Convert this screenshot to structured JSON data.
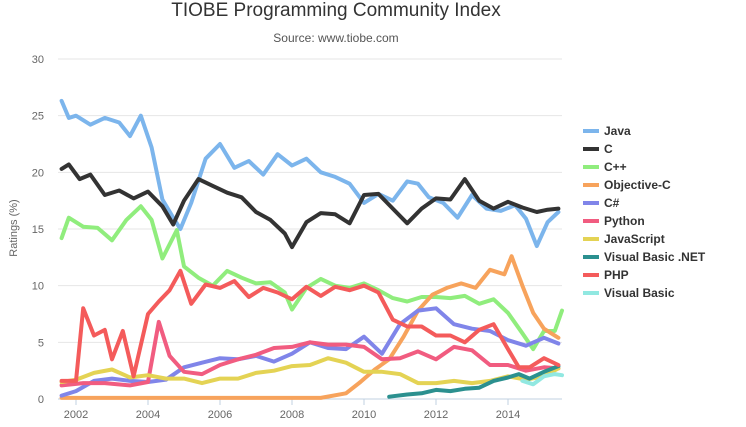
{
  "chart_data": {
    "type": "line",
    "title": "TIOBE Programming Community Index",
    "subtitle": "Source: www.tiobe.com",
    "xlabel": "",
    "ylabel": "Ratings (%)",
    "xlim": [
      2001.5,
      2015.5
    ],
    "ylim": [
      0,
      30
    ],
    "x_ticks": [
      2002,
      2004,
      2006,
      2008,
      2010,
      2012,
      2014
    ],
    "y_ticks": [
      0,
      5,
      10,
      15,
      20,
      25,
      30
    ],
    "grid": "horizontal",
    "legend_position": "right",
    "series": [
      {
        "name": "Java",
        "color": "#7cb5ec",
        "points": [
          [
            2001.6,
            26.3
          ],
          [
            2001.8,
            24.8
          ],
          [
            2002.0,
            25.0
          ],
          [
            2002.4,
            24.2
          ],
          [
            2002.8,
            24.8
          ],
          [
            2003.2,
            24.4
          ],
          [
            2003.5,
            23.2
          ],
          [
            2003.8,
            25.0
          ],
          [
            2004.1,
            22.2
          ],
          [
            2004.4,
            17.6
          ],
          [
            2004.7,
            16.0
          ],
          [
            2004.9,
            15.0
          ],
          [
            2005.2,
            17.3
          ],
          [
            2005.6,
            21.2
          ],
          [
            2006.0,
            22.5
          ],
          [
            2006.4,
            20.4
          ],
          [
            2006.8,
            21.0
          ],
          [
            2007.2,
            19.8
          ],
          [
            2007.6,
            21.6
          ],
          [
            2008.0,
            20.6
          ],
          [
            2008.4,
            21.2
          ],
          [
            2008.8,
            20.0
          ],
          [
            2009.2,
            19.6
          ],
          [
            2009.6,
            19.0
          ],
          [
            2010.0,
            17.3
          ],
          [
            2010.4,
            18.1
          ],
          [
            2010.8,
            17.5
          ],
          [
            2011.2,
            19.2
          ],
          [
            2011.5,
            19.0
          ],
          [
            2011.8,
            17.8
          ],
          [
            2012.2,
            17.3
          ],
          [
            2012.6,
            16.0
          ],
          [
            2013.0,
            18.0
          ],
          [
            2013.4,
            16.8
          ],
          [
            2013.8,
            16.6
          ],
          [
            2014.2,
            17.1
          ],
          [
            2014.5,
            15.9
          ],
          [
            2014.8,
            13.5
          ],
          [
            2015.1,
            15.6
          ],
          [
            2015.4,
            16.5
          ]
        ]
      },
      {
        "name": "C",
        "color": "#333333",
        "points": [
          [
            2001.6,
            20.3
          ],
          [
            2001.8,
            20.7
          ],
          [
            2002.1,
            19.4
          ],
          [
            2002.4,
            19.8
          ],
          [
            2002.8,
            18.0
          ],
          [
            2003.2,
            18.4
          ],
          [
            2003.6,
            17.7
          ],
          [
            2004.0,
            18.3
          ],
          [
            2004.4,
            17.0
          ],
          [
            2004.7,
            15.4
          ],
          [
            2005.0,
            17.5
          ],
          [
            2005.4,
            19.4
          ],
          [
            2005.8,
            18.8
          ],
          [
            2006.2,
            18.2
          ],
          [
            2006.6,
            17.8
          ],
          [
            2007.0,
            16.5
          ],
          [
            2007.4,
            15.8
          ],
          [
            2007.8,
            14.6
          ],
          [
            2008.0,
            13.4
          ],
          [
            2008.4,
            15.6
          ],
          [
            2008.8,
            16.4
          ],
          [
            2009.2,
            16.3
          ],
          [
            2009.6,
            15.5
          ],
          [
            2010.0,
            18.0
          ],
          [
            2010.4,
            18.1
          ],
          [
            2010.8,
            16.8
          ],
          [
            2011.2,
            15.5
          ],
          [
            2011.6,
            16.8
          ],
          [
            2012.0,
            17.7
          ],
          [
            2012.4,
            17.6
          ],
          [
            2012.8,
            19.4
          ],
          [
            2013.2,
            17.5
          ],
          [
            2013.6,
            16.8
          ],
          [
            2014.0,
            17.4
          ],
          [
            2014.4,
            16.9
          ],
          [
            2014.8,
            16.5
          ],
          [
            2015.1,
            16.7
          ],
          [
            2015.4,
            16.8
          ]
        ]
      },
      {
        "name": "C++",
        "color": "#90ed7d",
        "points": [
          [
            2001.6,
            14.2
          ],
          [
            2001.8,
            16.0
          ],
          [
            2002.2,
            15.2
          ],
          [
            2002.6,
            15.1
          ],
          [
            2003.0,
            14.0
          ],
          [
            2003.4,
            15.8
          ],
          [
            2003.8,
            17.0
          ],
          [
            2004.1,
            15.8
          ],
          [
            2004.4,
            12.4
          ],
          [
            2004.8,
            14.9
          ],
          [
            2005.0,
            11.7
          ],
          [
            2005.4,
            10.7
          ],
          [
            2005.8,
            10.0
          ],
          [
            2006.2,
            11.3
          ],
          [
            2006.6,
            10.7
          ],
          [
            2007.0,
            10.2
          ],
          [
            2007.4,
            10.3
          ],
          [
            2007.8,
            9.4
          ],
          [
            2008.0,
            7.9
          ],
          [
            2008.4,
            9.8
          ],
          [
            2008.8,
            10.6
          ],
          [
            2009.2,
            10.0
          ],
          [
            2009.6,
            9.8
          ],
          [
            2010.0,
            10.2
          ],
          [
            2010.4,
            9.6
          ],
          [
            2010.8,
            8.9
          ],
          [
            2011.2,
            8.6
          ],
          [
            2011.6,
            9.0
          ],
          [
            2012.0,
            9.0
          ],
          [
            2012.4,
            8.9
          ],
          [
            2012.8,
            9.1
          ],
          [
            2013.2,
            8.4
          ],
          [
            2013.6,
            8.8
          ],
          [
            2014.0,
            7.6
          ],
          [
            2014.4,
            5.8
          ],
          [
            2014.7,
            4.4
          ],
          [
            2015.0,
            6.0
          ],
          [
            2015.3,
            6.0
          ],
          [
            2015.5,
            7.8
          ]
        ]
      },
      {
        "name": "Objective-C",
        "color": "#f7a35c",
        "points": [
          [
            2001.6,
            0.1
          ],
          [
            2003.0,
            0.1
          ],
          [
            2005.0,
            0.1
          ],
          [
            2007.0,
            0.1
          ],
          [
            2008.8,
            0.1
          ],
          [
            2009.5,
            0.5
          ],
          [
            2009.9,
            1.5
          ],
          [
            2010.3,
            2.6
          ],
          [
            2010.7,
            3.5
          ],
          [
            2011.1,
            5.5
          ],
          [
            2011.5,
            7.8
          ],
          [
            2011.9,
            9.2
          ],
          [
            2012.3,
            9.8
          ],
          [
            2012.7,
            10.2
          ],
          [
            2013.1,
            9.8
          ],
          [
            2013.5,
            11.4
          ],
          [
            2013.9,
            11.0
          ],
          [
            2014.1,
            12.6
          ],
          [
            2014.4,
            10.0
          ],
          [
            2014.7,
            7.6
          ],
          [
            2015.0,
            6.2
          ],
          [
            2015.2,
            5.8
          ],
          [
            2015.4,
            5.4
          ]
        ]
      },
      {
        "name": "C#",
        "color": "#8085e9",
        "points": [
          [
            2001.6,
            0.3
          ],
          [
            2002.0,
            0.7
          ],
          [
            2002.5,
            1.6
          ],
          [
            2003.0,
            1.8
          ],
          [
            2003.5,
            1.6
          ],
          [
            2004.0,
            1.5
          ],
          [
            2004.5,
            1.7
          ],
          [
            2005.0,
            2.8
          ],
          [
            2005.5,
            3.2
          ],
          [
            2006.0,
            3.6
          ],
          [
            2006.5,
            3.5
          ],
          [
            2007.0,
            3.8
          ],
          [
            2007.5,
            3.3
          ],
          [
            2008.0,
            4.0
          ],
          [
            2008.5,
            5.0
          ],
          [
            2009.0,
            4.5
          ],
          [
            2009.5,
            4.4
          ],
          [
            2010.0,
            5.5
          ],
          [
            2010.5,
            4.0
          ],
          [
            2011.0,
            6.6
          ],
          [
            2011.5,
            7.8
          ],
          [
            2012.0,
            8.0
          ],
          [
            2012.5,
            6.6
          ],
          [
            2013.0,
            6.2
          ],
          [
            2013.5,
            6.0
          ],
          [
            2014.0,
            5.2
          ],
          [
            2014.5,
            4.7
          ],
          [
            2015.0,
            5.4
          ],
          [
            2015.4,
            4.9
          ]
        ]
      },
      {
        "name": "Python",
        "color": "#f15c80",
        "points": [
          [
            2001.6,
            1.2
          ],
          [
            2002.2,
            1.4
          ],
          [
            2002.8,
            1.4
          ],
          [
            2003.5,
            1.2
          ],
          [
            2004.0,
            1.5
          ],
          [
            2004.3,
            6.8
          ],
          [
            2004.6,
            3.8
          ],
          [
            2005.0,
            2.4
          ],
          [
            2005.5,
            2.2
          ],
          [
            2006.0,
            3.0
          ],
          [
            2006.5,
            3.5
          ],
          [
            2007.0,
            3.9
          ],
          [
            2007.5,
            4.5
          ],
          [
            2008.0,
            4.6
          ],
          [
            2008.5,
            5.0
          ],
          [
            2009.0,
            4.8
          ],
          [
            2009.5,
            4.8
          ],
          [
            2010.0,
            4.6
          ],
          [
            2010.5,
            3.5
          ],
          [
            2011.0,
            3.6
          ],
          [
            2011.5,
            4.2
          ],
          [
            2012.0,
            3.5
          ],
          [
            2012.5,
            4.6
          ],
          [
            2013.0,
            4.3
          ],
          [
            2013.5,
            3.0
          ],
          [
            2014.0,
            3.0
          ],
          [
            2014.5,
            2.5
          ],
          [
            2015.0,
            2.8
          ],
          [
            2015.4,
            2.7
          ]
        ]
      },
      {
        "name": "JavaScript",
        "color": "#e4d354",
        "points": [
          [
            2001.6,
            1.5
          ],
          [
            2002.0,
            1.7
          ],
          [
            2002.5,
            2.3
          ],
          [
            2003.0,
            2.6
          ],
          [
            2003.5,
            1.9
          ],
          [
            2004.0,
            2.1
          ],
          [
            2004.5,
            1.8
          ],
          [
            2005.0,
            1.8
          ],
          [
            2005.5,
            1.4
          ],
          [
            2006.0,
            1.8
          ],
          [
            2006.5,
            1.8
          ],
          [
            2007.0,
            2.3
          ],
          [
            2007.5,
            2.5
          ],
          [
            2008.0,
            2.9
          ],
          [
            2008.5,
            3.0
          ],
          [
            2009.0,
            3.6
          ],
          [
            2009.5,
            3.2
          ],
          [
            2010.0,
            2.4
          ],
          [
            2010.5,
            2.4
          ],
          [
            2011.0,
            2.2
          ],
          [
            2011.5,
            1.4
          ],
          [
            2012.0,
            1.4
          ],
          [
            2012.5,
            1.6
          ],
          [
            2013.0,
            1.4
          ],
          [
            2013.5,
            1.6
          ],
          [
            2014.0,
            2.0
          ],
          [
            2014.5,
            1.7
          ],
          [
            2015.0,
            2.0
          ],
          [
            2015.4,
            2.7
          ]
        ]
      },
      {
        "name": "Visual Basic .NET",
        "color": "#2b908f",
        "points": [
          [
            2010.7,
            0.2
          ],
          [
            2011.2,
            0.4
          ],
          [
            2011.6,
            0.5
          ],
          [
            2012.0,
            0.8
          ],
          [
            2012.4,
            0.7
          ],
          [
            2012.8,
            0.9
          ],
          [
            2013.2,
            1.0
          ],
          [
            2013.6,
            1.6
          ],
          [
            2014.0,
            1.9
          ],
          [
            2014.3,
            2.2
          ],
          [
            2014.6,
            1.8
          ],
          [
            2015.0,
            2.4
          ],
          [
            2015.4,
            2.9
          ]
        ]
      },
      {
        "name": "PHP",
        "color": "#f45b5b",
        "points": [
          [
            2001.6,
            1.6
          ],
          [
            2002.0,
            1.6
          ],
          [
            2002.2,
            8.0
          ],
          [
            2002.5,
            5.6
          ],
          [
            2002.8,
            6.1
          ],
          [
            2003.0,
            3.5
          ],
          [
            2003.3,
            6.0
          ],
          [
            2003.6,
            2.0
          ],
          [
            2004.0,
            7.5
          ],
          [
            2004.3,
            8.6
          ],
          [
            2004.6,
            9.6
          ],
          [
            2004.9,
            11.3
          ],
          [
            2005.2,
            8.4
          ],
          [
            2005.6,
            10.1
          ],
          [
            2006.0,
            9.8
          ],
          [
            2006.4,
            10.4
          ],
          [
            2006.8,
            9.0
          ],
          [
            2007.2,
            9.8
          ],
          [
            2007.6,
            9.4
          ],
          [
            2008.0,
            8.8
          ],
          [
            2008.4,
            9.9
          ],
          [
            2008.8,
            9.1
          ],
          [
            2009.2,
            9.9
          ],
          [
            2009.6,
            9.6
          ],
          [
            2010.0,
            10.0
          ],
          [
            2010.4,
            9.4
          ],
          [
            2010.8,
            7.0
          ],
          [
            2011.2,
            6.4
          ],
          [
            2011.6,
            6.4
          ],
          [
            2012.0,
            5.6
          ],
          [
            2012.4,
            5.6
          ],
          [
            2012.8,
            5.0
          ],
          [
            2013.2,
            6.1
          ],
          [
            2013.6,
            6.6
          ],
          [
            2014.0,
            4.4
          ],
          [
            2014.3,
            2.8
          ],
          [
            2014.6,
            2.8
          ],
          [
            2015.0,
            3.6
          ],
          [
            2015.4,
            3.0
          ]
        ]
      },
      {
        "name": "Visual Basic",
        "color": "#91e8e1",
        "points": [
          [
            2014.4,
            1.6
          ],
          [
            2014.7,
            1.3
          ],
          [
            2015.0,
            2.0
          ],
          [
            2015.3,
            2.2
          ],
          [
            2015.5,
            2.1
          ]
        ]
      }
    ]
  }
}
